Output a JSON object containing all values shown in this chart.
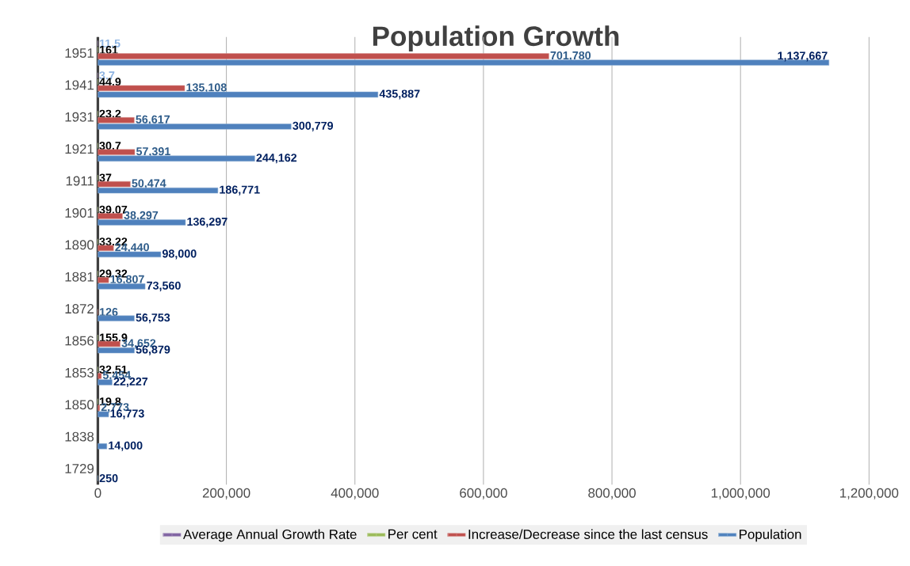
{
  "chart_data": {
    "type": "bar",
    "orientation": "horizontal",
    "title": "Population Growth",
    "categories": [
      "1951",
      "1941",
      "1931",
      "1921",
      "1911",
      "1901",
      "1890",
      "1881",
      "1872",
      "1856",
      "1853",
      "1850",
      "1838",
      "1729"
    ],
    "series": [
      {
        "name": "Average Annual Growth Rate",
        "color": "#8064a2",
        "values": [
          11.5,
          3.7,
          null,
          null,
          null,
          null,
          null,
          null,
          null,
          null,
          null,
          null,
          null,
          null
        ],
        "value_labels": [
          "11.5",
          "3.7",
          null,
          null,
          null,
          null,
          null,
          null,
          null,
          null,
          null,
          null,
          null,
          null
        ]
      },
      {
        "name": "Per cent",
        "color": "#9bbb59",
        "values": [
          161,
          44.9,
          23.2,
          30.7,
          37,
          39.07,
          33.22,
          29.32,
          null,
          155.9,
          32.51,
          19.8,
          null,
          null
        ],
        "value_labels": [
          "161",
          "44.9",
          "23.2",
          "30.7",
          "37",
          "39.07",
          "33.22",
          "29.32",
          null,
          "155.9",
          "32.51",
          "19.8",
          null,
          null
        ]
      },
      {
        "name": "Increase/Decrease since the last census",
        "color": "#c0504d",
        "values": [
          701780,
          135108,
          56617,
          57391,
          50474,
          38297,
          24440,
          16807,
          126,
          34652,
          5454,
          2773,
          null,
          null
        ],
        "value_labels": [
          "701,780",
          "135,108",
          "56,617",
          "57,391",
          "50,474",
          "38,297",
          "24,440",
          "16,807",
          "126",
          "34,652",
          "5,454",
          "2,773",
          null,
          null
        ]
      },
      {
        "name": "Population",
        "color": "#4f81bd",
        "values": [
          1137667,
          435887,
          300779,
          244162,
          186771,
          136297,
          98000,
          73560,
          56753,
          56879,
          22227,
          16773,
          14000,
          250
        ],
        "value_labels": [
          "1,137,667",
          "435,887",
          "300,779",
          "244,162",
          "186,771",
          "136,297",
          "98,000",
          "73,560",
          "56,753",
          "56,879",
          "22,227",
          "16,773",
          "14,000",
          "250"
        ]
      }
    ],
    "xlim": [
      0,
      1200000
    ],
    "xticks": [
      0,
      {
        "value": 200000,
        "label": "200,000"
      },
      {
        "value": 400000,
        "label": "400,000"
      },
      {
        "value": 600000,
        "label": "600,000"
      },
      {
        "value": 800000,
        "label": "800,000"
      },
      {
        "value": 1000000,
        "label": "1,000,000"
      },
      {
        "value": 1200000,
        "label": "1,200,000"
      }
    ],
    "grid": "x",
    "legend": "bottom"
  }
}
